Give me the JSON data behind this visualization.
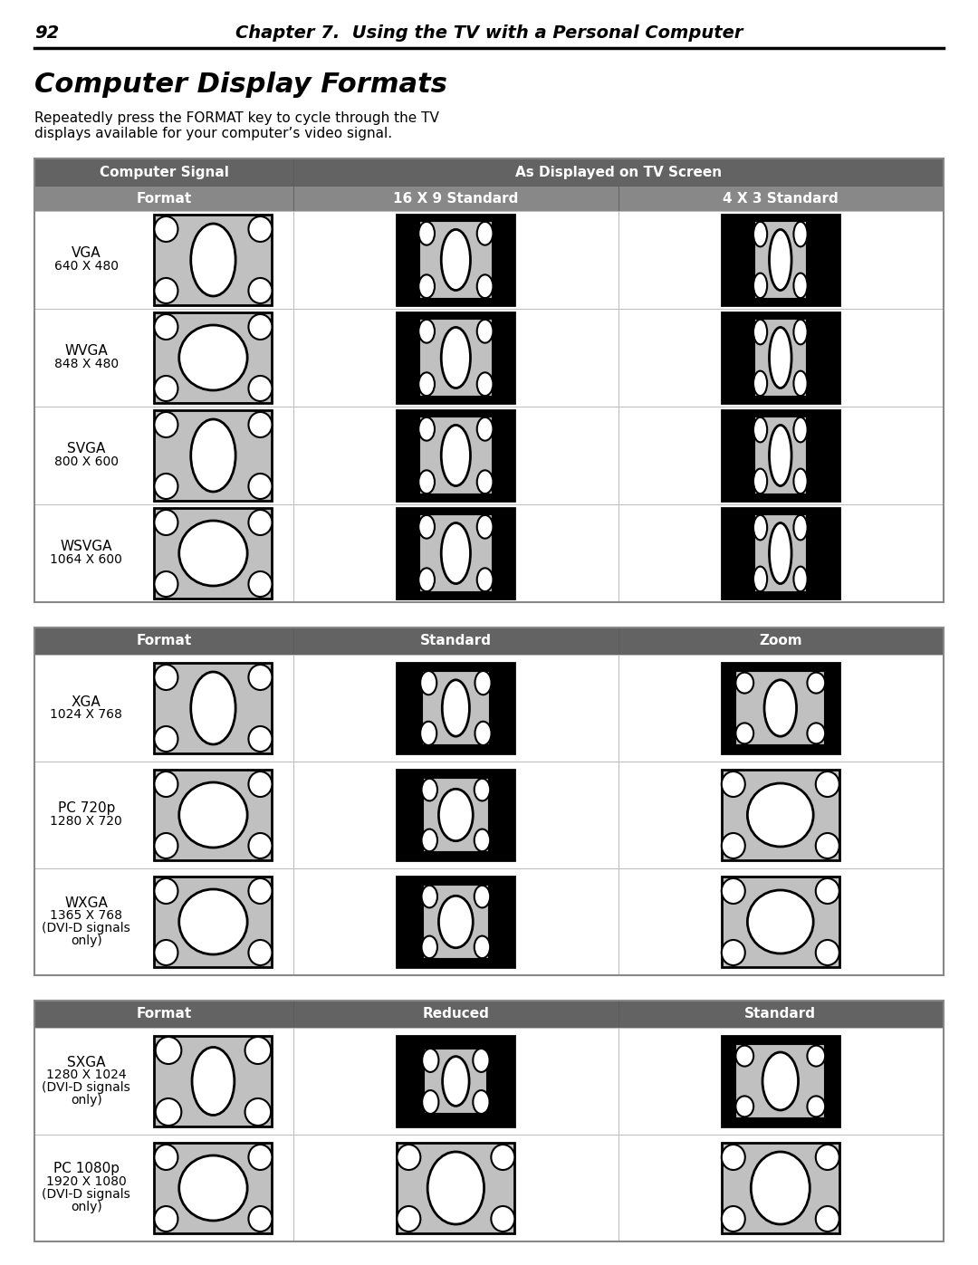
{
  "page_number": "92",
  "chapter_title": "Chapter 7.  Using the TV with a Personal Computer",
  "section_title": "Computer Display Formats",
  "intro_line1": "Repeatedly press the FORMAT key to cycle through the TV",
  "intro_line2": "displays available for your computer’s video signal.",
  "table1": {
    "col_headers_row1": [
      "Computer Signal",
      "As Displayed on TV Screen"
    ],
    "col_headers_row2": [
      "Format",
      "16 X 9 Standard",
      "4 X 3 Standard"
    ],
    "rows": [
      {
        "label1": "VGA",
        "label2": "640 X 480",
        "d0": "sq_gray",
        "d1": "land_black_sq_inner",
        "d2": "land_black_narrow_inner"
      },
      {
        "label1": "WVGA",
        "label2": "848 X 480",
        "d0": "land_gray",
        "d1": "land_black_sq_inner",
        "d2": "land_black_narrow_inner"
      },
      {
        "label1": "SVGA",
        "label2": "800 X 600",
        "d0": "sq_gray",
        "d1": "land_black_sq_inner",
        "d2": "land_black_narrow_inner"
      },
      {
        "label1": "WSVGA",
        "label2": "1064 X 600",
        "d0": "land_gray",
        "d1": "land_black_sq_inner",
        "d2": "land_black_narrow_inner"
      }
    ]
  },
  "table2": {
    "col_headers": [
      "Format",
      "Standard",
      "Zoom"
    ],
    "rows": [
      {
        "label1": "XGA",
        "label2": "1024 X 768",
        "label_extra": "",
        "d0": "sq_gray",
        "d1": "port_black_sq_inner",
        "d2": "port_black_sq_inner_wide"
      },
      {
        "label1": "PC 720p",
        "label2": "1280 X 720",
        "label_extra": "",
        "d0": "land_gray",
        "d1": "port_black_land_inner",
        "d2": "sq_gray_bordered"
      },
      {
        "label1": "WXGA",
        "label2": "1365 X 768",
        "label_extra": "(DVI-D signals\nonly)",
        "d0": "land_gray",
        "d1": "port_black_land_inner",
        "d2": "sq_gray_bordered"
      }
    ]
  },
  "table3": {
    "col_headers": [
      "Format",
      "Reduced",
      "Standard"
    ],
    "rows": [
      {
        "label1": "SXGA",
        "label2": "1280 X 1024",
        "label_extra": "(DVI-D signals\nonly)",
        "d0": "sq_gray_tall",
        "d1": "port_black_sq_inner_sm",
        "d2": "port_black_sq_inner_wide2"
      },
      {
        "label1": "PC 1080p",
        "label2": "1920 X 1080",
        "label_extra": "(DVI-D signals\nonly)",
        "d0": "land_gray",
        "d1": "gray_land_tall_oval",
        "d2": "sq_gray_plain"
      }
    ]
  },
  "hdr1_color": "#636363",
  "hdr2_color": "#888888",
  "border_color": "#aaaaaa",
  "cell_border": "#cccccc",
  "gray": "#c0c0c0"
}
